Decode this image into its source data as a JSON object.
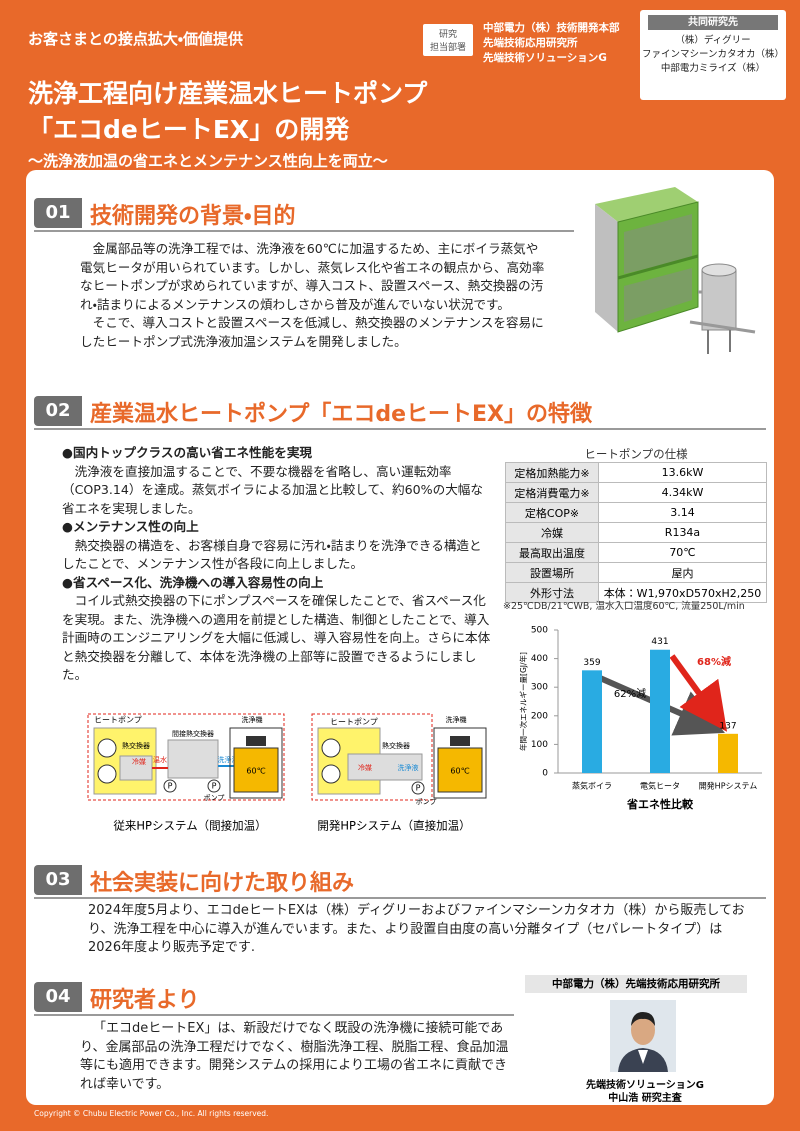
{
  "header": {
    "category": "お客さまとの接点拡大・価値提供",
    "title_lines": [
      "洗浄工程向け産業温水ヒートポンプ",
      "「エコdeヒートEX」の開発"
    ],
    "subtitle": "～洗浄液加温の省エネとメンテナンス性向上を両立～",
    "dept_label": [
      "研究",
      "担当部署"
    ],
    "dept_lines": [
      "中部電力（株）技術開発本部",
      "先端技術応用研究所",
      "先端技術ソリューションG"
    ],
    "joint_label": "共同研究先",
    "joint_lines": [
      "（株）ディグリー",
      "ファインマシーンカタオカ（株）",
      "中部電力ミライズ（株）"
    ]
  },
  "sections": [
    {
      "number": "01",
      "title": "技術開発の背景・目的",
      "paragraphs": [
        "金属部品等の洗浄工程では、洗浄液を60℃に加温するため、主にボイラ蒸気や電気ヒータが用いられています。しかし、蒸気レス化や省エネの観点から、高効率なヒートポンプが求められていますが、導入コスト、設置スペース、熱交換器の汚れ・詰まりによるメンテナンスの煩わしさから普及が進んでいない状況です。",
        "そこで、導入コストと設置スペースを低減し、熱交換器のメンテナンスを容易にしたヒートポンプ式洗浄液加温システムを開発しました。"
      ]
    },
    {
      "number": "02",
      "title": "産業温水ヒートポンプ「エコdeヒートEX」の特徴",
      "bullets": [
        {
          "heading": "●国内トップクラスの高い省エネ性能を実現",
          "text": "洗浄液を直接加温することで、不要な機器を省略し、高い運転効率（COP3.14）を達成。蒸気ボイラによる加温と比較して、約60%の大幅な省エネを実現しました。"
        },
        {
          "heading": "●メンテナンス性の向上",
          "text": "熱交換器の構造を、お客様自身で容易に汚れ・詰まりを洗浄できる構造としたことで、メンテナンス性が各段に向上しました。"
        },
        {
          "heading": "●省スペース化、洗浄機への導入容易性の向上",
          "text": "コイル式熱交換器の下にポンプスペースを確保したことで、省スペース化を実現。また、洗浄機への適用を前提とした構造、制御としたことで、導入計画時のエンジニアリングを大幅に低減し、導入容易性を向上。さらに本体と熱交換器を分離して、本体を洗浄機の上部等に設置できるようにしました。"
        }
      ]
    },
    {
      "number": "03",
      "title": "社会実装に向けた取り組み",
      "paragraphs": [
        "2024年度5月より、エコdeヒートEXは（株）ディグリーおよびファインマシーンカタオカ（株）から販売しており、洗浄工程を中心に導入が進んでいます。また、より設置自由度の高い分離タイプ（セパレートタイプ）は2026年度より販売予定です."
      ]
    },
    {
      "number": "04",
      "title": "研究者より",
      "paragraphs": [
        "「エコdeヒートEX」は、新設だけでなく既設の洗浄機に接続可能であり、金属部品の洗浄工程だけでなく、樹脂洗浄工程、脱脂工程、食品加温等にも適用できます。開発システムの採用により工場の省エネに貢献できれば幸いです。"
      ]
    }
  ],
  "spec_table": {
    "title": "ヒートポンプの仕様",
    "rows": [
      [
        "定格加熱能力※",
        "13.6kW"
      ],
      [
        "定格消費電力※",
        "4.34kW"
      ],
      [
        "定格COP※",
        "3.14"
      ],
      [
        "冷媒",
        "R134a"
      ],
      [
        "最高取出温度",
        "70℃"
      ],
      [
        "設置場所",
        "屋内"
      ],
      [
        "外形寸法",
        "本体：W1,970xD570xH2,250"
      ]
    ],
    "note": "※25℃DB/21℃WB, 温水入口温度60℃, 流量250L/min"
  },
  "chart_data": {
    "type": "bar",
    "categories": [
      "蒸気ボイラ",
      "電気ヒータ",
      "開発HPシステム"
    ],
    "values": [
      359,
      431,
      137
    ],
    "colors": [
      "#29abe2",
      "#29abe2",
      "#f5b800"
    ],
    "ylim": [
      0,
      500
    ],
    "yticks": [
      0,
      100,
      200,
      300,
      400,
      500
    ],
    "y_label": "年間一次エネルギー量[GJ/年]",
    "x_label": "省エネ性比較",
    "annotations": [
      "62%減",
      "68%減"
    ]
  },
  "diagrams": [
    {
      "caption": "従来HPシステム（間接加温）",
      "heat_pump": "ヒートポンプ",
      "heat_exchanger": "熱交換器",
      "indirect_exchanger": "間接熱交換器",
      "refrigerant": "冷媒",
      "hot_water": "温水",
      "wash_liquid": "洗浄液",
      "pump_symbol": "P",
      "pump": "ポンプ",
      "washer": "洗浄機",
      "temp": "60℃"
    },
    {
      "caption": "開発HPシステム（直接加温）",
      "heat_pump": "ヒートポンプ",
      "heat_exchanger": "熱交換器",
      "refrigerant": "冷媒",
      "wash_liquid": "洗浄液",
      "pump_symbol": "P",
      "pump": "ポンプ",
      "washer": "洗浄機",
      "temp": "60℃"
    }
  ],
  "researcher": {
    "org": "中部電力（株）先端技術応用研究所",
    "group": "先端技術ソリューションG",
    "name": "中山浩 研究主査"
  },
  "copyright": "Copyright © Chubu Electric Power Co., Inc. All rights reserved."
}
